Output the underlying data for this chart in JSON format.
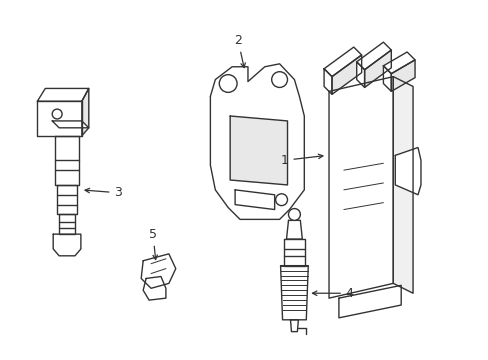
{
  "background_color": "#ffffff",
  "line_color": "#333333",
  "line_width": 1.0,
  "figsize": [
    4.89,
    3.6
  ],
  "dpi": 100
}
